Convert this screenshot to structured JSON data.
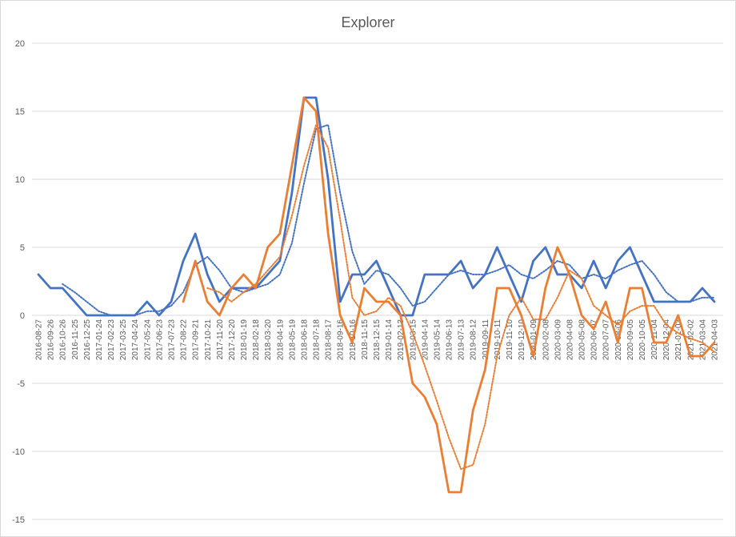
{
  "chart_data": {
    "type": "line",
    "title": "Explorer",
    "xlabel": "",
    "ylabel": "",
    "ylim": [
      -15,
      20
    ],
    "y_ticks": [
      20,
      15,
      10,
      5,
      0,
      -5,
      -10,
      -15
    ],
    "grid": true,
    "legend": "none",
    "x_tick_labels": [
      "2016-08-27",
      "2016-09-26",
      "2016-10-26",
      "2016-11-25",
      "2016-12-25",
      "2017-01-24",
      "2017-02-23",
      "2017-03-25",
      "2017-04-24",
      "2017-05-24",
      "2017-06-23",
      "2017-07-23",
      "2017-08-22",
      "2017-09-21",
      "2017-10-21",
      "2017-11-20",
      "2017-12-20",
      "2018-01-19",
      "2018-02-18",
      "2018-03-20",
      "2018-04-19",
      "2018-05-19",
      "2018-06-18",
      "2018-07-18",
      "2018-08-17",
      "2018-09-16",
      "2018-10-16",
      "2018-11-15",
      "2018-12-15",
      "2019-01-14",
      "2019-02-13",
      "2019-03-15",
      "2019-04-14",
      "2019-05-14",
      "2019-06-13",
      "2019-07-13",
      "2019-08-12",
      "2019-09-11",
      "2019-10-11",
      "2019-11-10",
      "2019-12-10",
      "2020-01-09",
      "2020-02-08",
      "2020-03-09",
      "2020-04-08",
      "2020-05-08",
      "2020-06-07",
      "2020-07-07",
      "2020-08-06",
      "2020-09-05",
      "2020-10-05",
      "2020-11-04",
      "2020-12-04",
      "2021-01-03",
      "2021-02-02",
      "2021-03-04",
      "2021-04-03"
    ],
    "series": [
      {
        "color": "#4472C4",
        "style": "solid",
        "values": [
          3,
          2,
          2,
          1,
          0,
          0,
          0,
          0,
          0,
          1,
          0,
          1,
          4,
          6,
          3,
          1,
          2,
          2,
          2,
          3,
          4,
          9,
          16,
          16,
          10,
          1,
          3,
          3,
          4,
          2,
          0,
          0,
          3,
          3,
          3,
          4,
          2,
          3,
          5,
          3,
          1,
          4,
          5,
          3,
          3,
          2,
          4,
          2,
          4,
          5,
          3,
          1,
          1,
          1,
          1,
          2,
          1
        ]
      },
      {
        "color": "#4472C4",
        "style": "dotted",
        "values": [
          null,
          null,
          2.3,
          1.7,
          1,
          0.3,
          0,
          0,
          0,
          0.3,
          0.3,
          0.7,
          1.7,
          3.7,
          4.3,
          3.3,
          2,
          1.7,
          2,
          2.3,
          3,
          5.3,
          9.7,
          13.7,
          14,
          9,
          4.7,
          2.3,
          3.3,
          3,
          2,
          0.7,
          1,
          2,
          3,
          3.3,
          3,
          3,
          3.3,
          3.7,
          3,
          2.7,
          3.3,
          4,
          3.7,
          2.7,
          3,
          2.7,
          3.3,
          3.7,
          4,
          3,
          1.7,
          1,
          1,
          1.3,
          1.3
        ]
      },
      {
        "color": "#ED7D31",
        "style": "solid",
        "values": [
          null,
          null,
          null,
          null,
          null,
          null,
          null,
          null,
          null,
          null,
          null,
          null,
          1,
          4,
          1,
          0,
          2,
          3,
          2,
          5,
          6,
          11,
          16,
          15,
          6,
          0,
          -2,
          2,
          1,
          1,
          0,
          -5,
          -6,
          -8,
          -13,
          -13,
          -7,
          -4,
          2,
          2,
          0,
          -3,
          2,
          5,
          3,
          0,
          -1,
          1,
          -2,
          2,
          2,
          -2,
          -2,
          0,
          -3,
          -3,
          -2
        ]
      },
      {
        "color": "#ED7D31",
        "style": "dotted",
        "values": [
          null,
          null,
          null,
          null,
          null,
          null,
          null,
          null,
          null,
          null,
          null,
          null,
          null,
          null,
          2,
          1.7,
          1,
          1.7,
          2.3,
          3.3,
          4.3,
          7.3,
          11,
          14,
          12.3,
          7,
          1.3,
          0,
          0.3,
          1.3,
          0.7,
          -1.3,
          -3.7,
          -6.3,
          -9,
          -11.3,
          -11,
          -8,
          -3,
          0,
          1.3,
          -0.3,
          -0.3,
          1.3,
          3.3,
          2.7,
          0.7,
          0,
          -0.7,
          0.3,
          0.7,
          0.7,
          -0.7,
          -1.3,
          -1.7,
          -2,
          -2.7
        ]
      }
    ]
  }
}
